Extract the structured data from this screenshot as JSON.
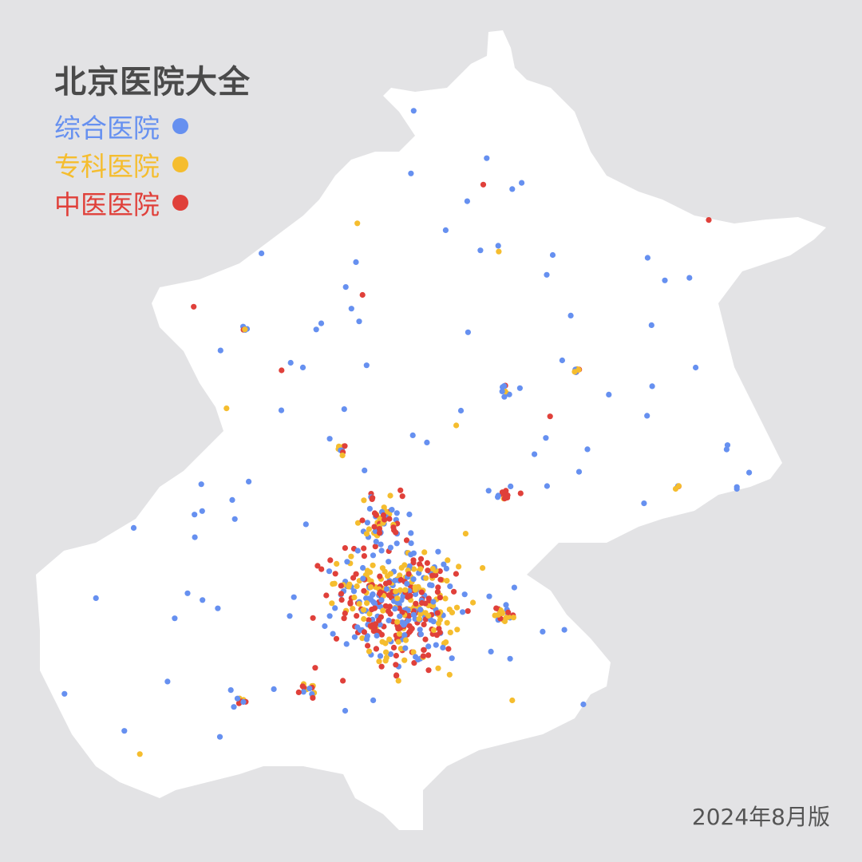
{
  "title": "北京医院大全",
  "legend": [
    {
      "label": "综合医院",
      "color": "#6690f0"
    },
    {
      "label": "专科医院",
      "color": "#f5bd2e"
    },
    {
      "label": "中医医院",
      "color": "#e0403a"
    }
  ],
  "edition": "2024年8月版",
  "colors": {
    "background": "#e3e3e5",
    "land": "#ffffff",
    "title": "#4a4a4a"
  }
}
